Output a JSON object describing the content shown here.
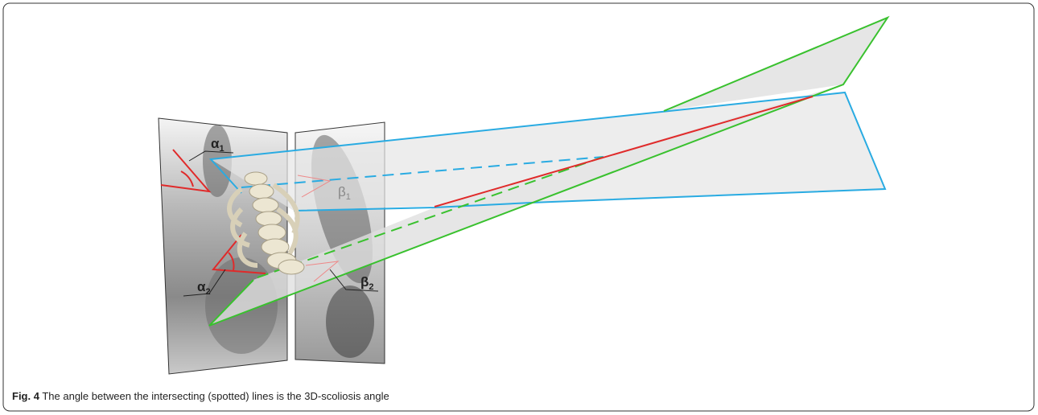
{
  "figure": {
    "labels": [
      {
        "symbol": "α",
        "sub": "1"
      },
      {
        "symbol": "α",
        "sub": "2"
      },
      {
        "symbol": "β",
        "sub": "1"
      },
      {
        "symbol": "β",
        "sub": "2"
      }
    ],
    "caption": {
      "label": "Fig. 4",
      "text": "The angle between the intersecting (spotted) lines is the 3D-scoliosis angle"
    }
  }
}
